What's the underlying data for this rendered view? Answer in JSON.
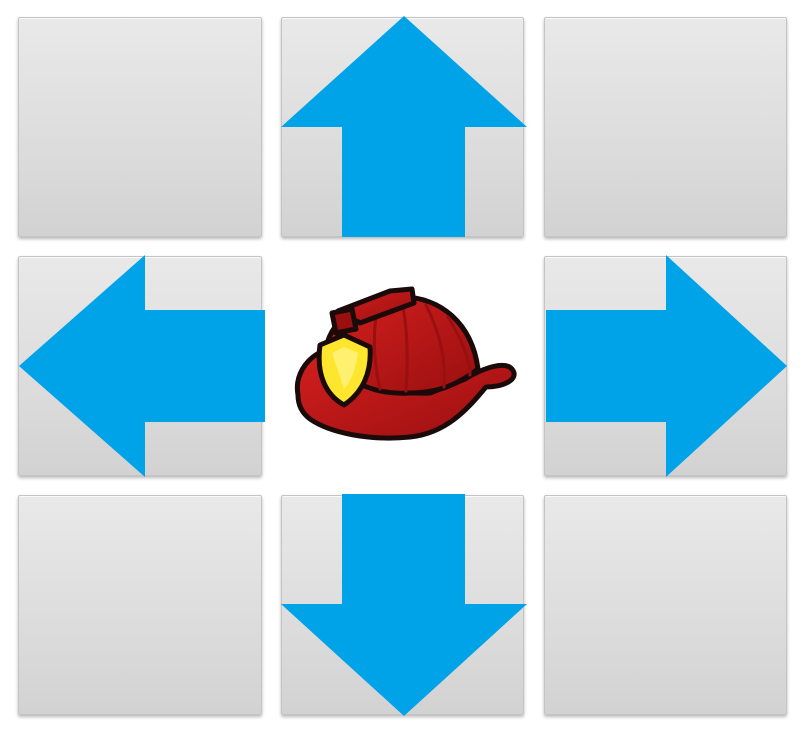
{
  "pad": {
    "accent_color": "#00a3e8",
    "tiles": [
      {
        "name": "tile-up-left",
        "role": "empty"
      },
      {
        "name": "tile-up",
        "role": "move-up"
      },
      {
        "name": "tile-up-right",
        "role": "empty"
      },
      {
        "name": "tile-left",
        "role": "move-left"
      },
      {
        "name": "tile-right",
        "role": "move-right"
      },
      {
        "name": "tile-down-left",
        "role": "empty"
      },
      {
        "name": "tile-down",
        "role": "move-down"
      },
      {
        "name": "tile-down-right",
        "role": "empty"
      }
    ],
    "center_icon": "firefighter-helmet-icon",
    "helmet_colors": {
      "shell": "#d41f1f",
      "shell_dark": "#9a0f0f",
      "badge": "#ffe62e",
      "outline": "#1a0a0a"
    }
  }
}
